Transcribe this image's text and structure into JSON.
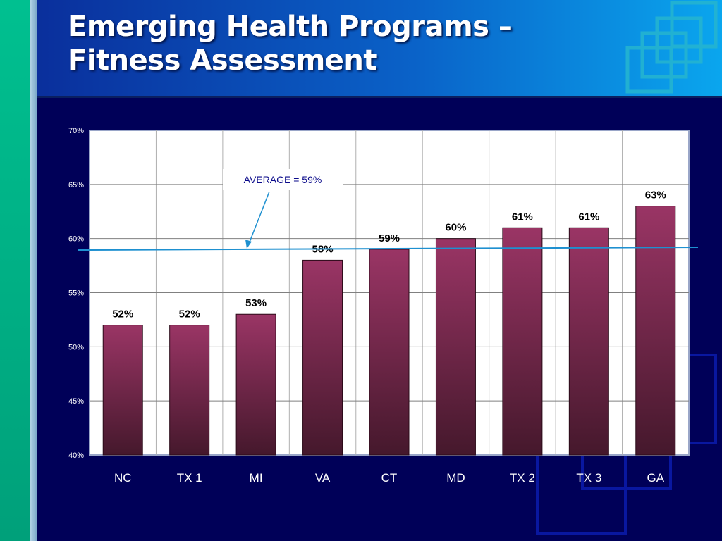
{
  "slide": {
    "title_line1": "Emerging Health Programs –",
    "title_line2": "Fitness Assessment"
  },
  "colors": {
    "background": "#000050",
    "bar_top": "#9a3565",
    "bar_bottom": "#45182c",
    "average_line": "#1e90d0",
    "plot_area": "#ffffff",
    "header_gradient": [
      "#0a2f9c",
      "#0aa6ee"
    ],
    "left_bar": "#00b887"
  },
  "chart_data": {
    "type": "bar",
    "categories": [
      "NC",
      "TX 1",
      "MI",
      "VA",
      "CT",
      "MD",
      "TX 2",
      "TX 3",
      "GA"
    ],
    "values": [
      52,
      52,
      53,
      58,
      59,
      60,
      61,
      61,
      63
    ],
    "value_labels": [
      "52%",
      "52%",
      "53%",
      "58%",
      "59%",
      "60%",
      "61%",
      "61%",
      "63%"
    ],
    "ylim": [
      40,
      70
    ],
    "yticks": [
      40,
      45,
      50,
      55,
      60,
      65,
      70
    ],
    "ytick_labels": [
      "40%",
      "45%",
      "50%",
      "55%",
      "60%",
      "65%",
      "70%"
    ],
    "grid": true,
    "average": 59,
    "annotation": "AVERAGE = 59%"
  }
}
